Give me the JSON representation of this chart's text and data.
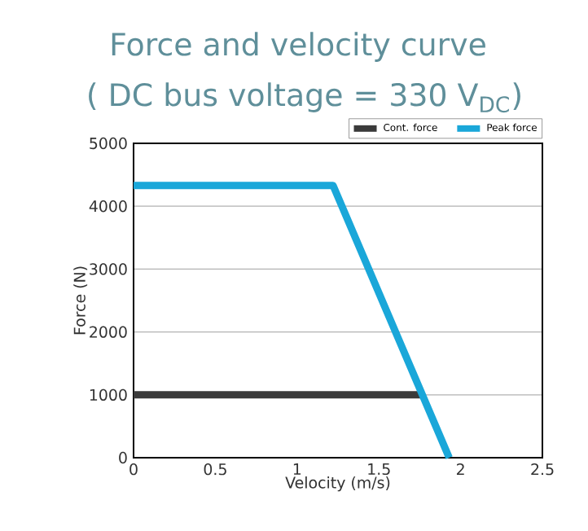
{
  "chart_data": {
    "type": "line",
    "title": "Force and velocity curve",
    "subtitle": "( DC bus voltage = 330 V$_{DC}$)",
    "xlabel": "Velocity (m/s)",
    "ylabel": "Force (N)",
    "series": [
      {
        "name": "Cont. force",
        "color": "#3a3a3a",
        "x": [
          0,
          1.76
        ],
        "values": [
          1000,
          1000
        ]
      },
      {
        "name": "Peak force",
        "color": "#1aa7d9",
        "x": [
          0,
          1.22,
          1.93
        ],
        "values": [
          4330,
          4330,
          0
        ]
      }
    ],
    "xlim": [
      0,
      2.5
    ],
    "xticks": [
      0,
      0.5,
      1,
      1.5,
      2,
      2.5
    ],
    "ylim": [
      0,
      5000
    ],
    "yticks": [
      0,
      1000,
      2000,
      3000,
      4000,
      5000
    ],
    "grid": "y",
    "legend": "top right",
    "marker": "none",
    "line_style": "solid"
  }
}
